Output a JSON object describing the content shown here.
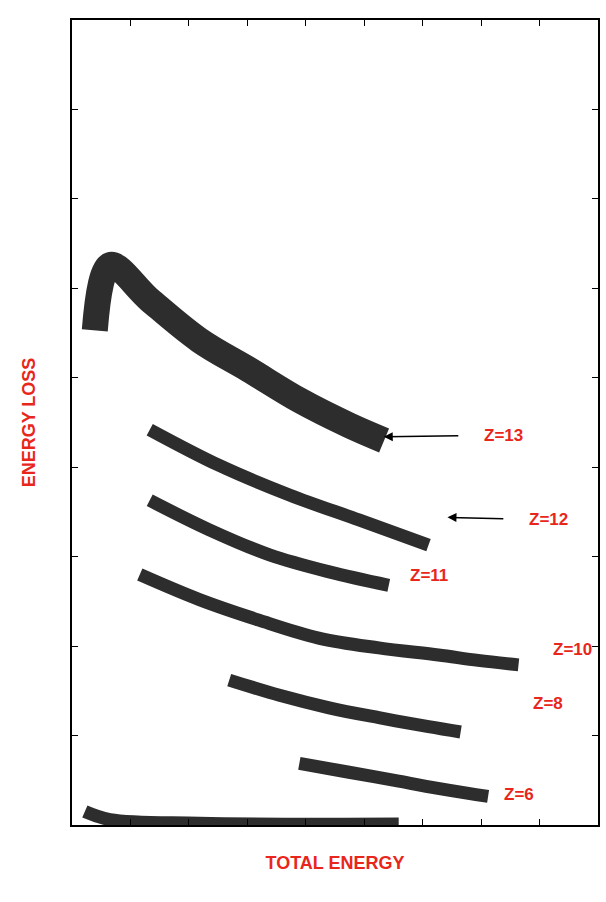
{
  "chart_data": {
    "type": "scatter",
    "x_label": "TOTAL ENERGY",
    "y_label": "ENERGY LOSS",
    "xlim": [
      0,
      90
    ],
    "ylim": [
      0,
      90
    ],
    "xticks": [
      0,
      10,
      20,
      30,
      40,
      50,
      60,
      70,
      80,
      90
    ],
    "yticks": [
      0,
      10,
      20,
      30,
      40,
      50,
      60,
      70,
      80,
      90
    ],
    "tick_labels": false,
    "grid": false,
    "series": [
      {
        "color": "#000000",
        "line_style": "solid",
        "x": [
          3.9,
          6.5,
          13.3,
          21.8,
          30.3,
          38.9,
          47.4,
          53.4
        ],
        "values": [
          55.3,
          62.6,
          58.7,
          54.2,
          50.9,
          47.5,
          44.7,
          43.0
        ]
      },
      {
        "color": "#000000",
        "line_style": "solid",
        "x": [
          13.3,
          25.2,
          37.2,
          49.1,
          61.0
        ],
        "values": [
          44.2,
          40.2,
          36.9,
          34.1,
          31.3
        ]
      },
      {
        "color": "#000000",
        "line_style": "solid",
        "x": [
          13.3,
          23.5,
          33.8,
          44.0,
          54.2
        ],
        "values": [
          36.3,
          33.0,
          30.2,
          28.3,
          26.8
        ]
      },
      {
        "color": "#000000",
        "line_style": "solid",
        "x": [
          11.6,
          21.8,
          32.0,
          42.2,
          52.5,
          62.7,
          69.5,
          76.4
        ],
        "values": [
          28.0,
          25.2,
          22.9,
          20.9,
          19.8,
          19.0,
          18.4,
          17.9
        ]
      },
      {
        "color": "#000000",
        "line_style": "solid",
        "x": [
          26.9,
          35.5,
          44.0,
          52.5,
          61.0,
          66.5
        ],
        "values": [
          16.2,
          14.5,
          13.1,
          12.0,
          11.0,
          10.4
        ]
      },
      {
        "color": "#000000",
        "line_style": "solid",
        "x": [
          38.9,
          47.4,
          55.9,
          64.4,
          71.2
        ],
        "values": [
          6.9,
          5.9,
          4.9,
          3.9,
          3.2
        ]
      },
      {
        "color": "#000000",
        "line_style": "solid",
        "x": [
          2.2,
          6.5,
          21.8,
          55.9
        ],
        "values": [
          1.5,
          0.6,
          0.2,
          0.1
        ]
      }
    ],
    "annotations": [
      {
        "text": "Z=13",
        "x": 73.8,
        "y": 43.6,
        "arrow_to": [
          53.0,
          43.4
        ]
      },
      {
        "text": "Z=12",
        "x": 81.5,
        "y": 34.1,
        "arrow_to": [
          63.9,
          34.4
        ]
      },
      {
        "text": "Z=11",
        "x": 61.0,
        "y": 27.9
      },
      {
        "text": "Z=10",
        "x": 85.7,
        "y": 19.6
      },
      {
        "text": "Z=8",
        "x": 81.5,
        "y": 13.6
      },
      {
        "text": "Z=6",
        "x": 76.4,
        "y": 3.4
      }
    ]
  }
}
